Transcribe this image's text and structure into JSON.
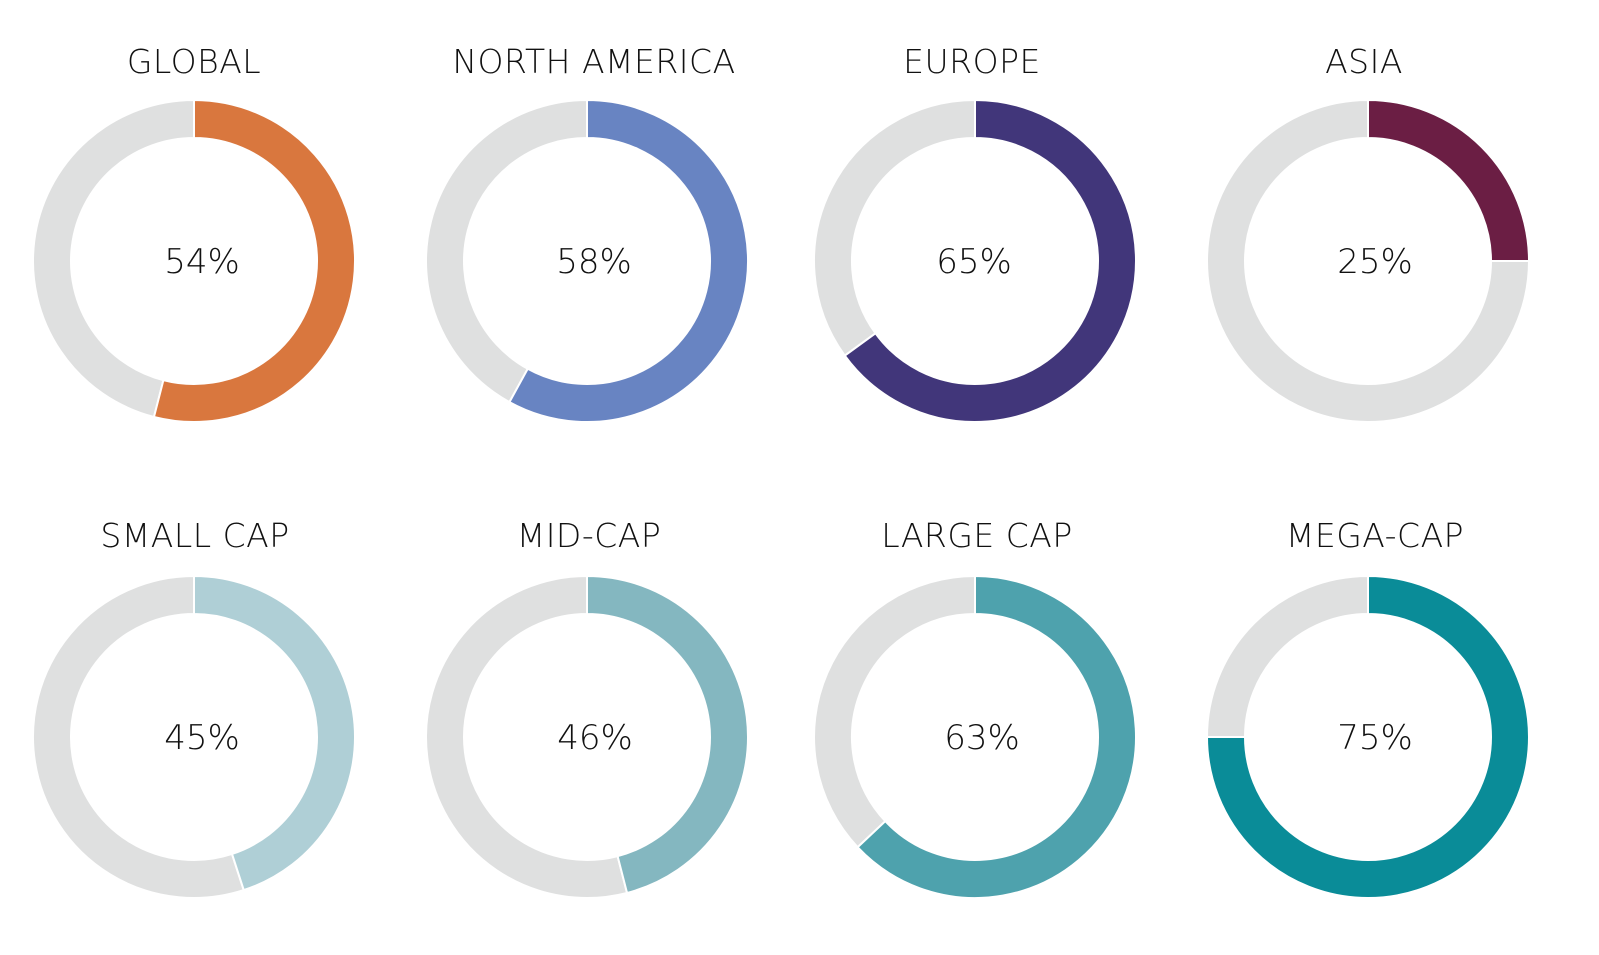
{
  "chart_data": [
    {
      "type": "pie",
      "title": "GLOBAL",
      "value_label": "54%",
      "values": [
        54,
        46
      ],
      "colors": [
        "#D9773E",
        "#DFE0E0"
      ]
    },
    {
      "type": "pie",
      "title": "NORTH AMERICA",
      "value_label": "58%",
      "values": [
        58,
        42
      ],
      "colors": [
        "#6884C2",
        "#DFE0E0"
      ]
    },
    {
      "type": "pie",
      "title": "EUROPE",
      "value_label": "65%",
      "values": [
        65,
        35
      ],
      "colors": [
        "#41367A",
        "#DFE0E0"
      ]
    },
    {
      "type": "pie",
      "title": "ASIA",
      "value_label": "25%",
      "values": [
        25,
        75
      ],
      "colors": [
        "#6B1E44",
        "#DFE0E0"
      ]
    },
    {
      "type": "pie",
      "title": "SMALL CAP",
      "value_label": "45%",
      "values": [
        45,
        55
      ],
      "colors": [
        "#AFCFD6",
        "#DFE0E0"
      ]
    },
    {
      "type": "pie",
      "title": "MID-CAP",
      "value_label": "46%",
      "values": [
        46,
        54
      ],
      "colors": [
        "#84B7C0",
        "#DFE0E0"
      ]
    },
    {
      "type": "pie",
      "title": "LARGE CAP",
      "value_label": "63%",
      "values": [
        63,
        37
      ],
      "colors": [
        "#4EA2AD",
        "#DFE0E0"
      ]
    },
    {
      "type": "pie",
      "title": "MEGA-CAP",
      "value_label": "75%",
      "values": [
        75,
        25
      ],
      "colors": [
        "#0A8C98",
        "#DFE0E0"
      ]
    }
  ]
}
